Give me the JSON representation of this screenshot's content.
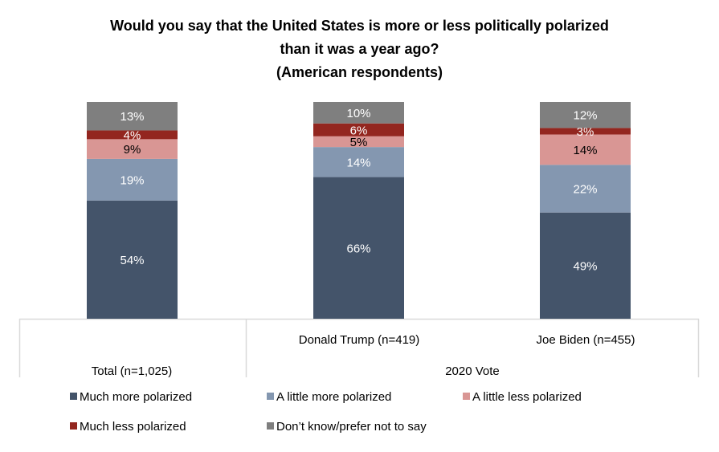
{
  "chart_data": {
    "type": "bar",
    "stacked": true,
    "title_lines": [
      "Would you say that the United States is more or less politically polarized",
      "than it was a year ago?",
      "(American respondents)"
    ],
    "categories": [
      "Total (n=1,025)",
      "Donald Trump (n=419)",
      "Joe Biden (n=455)"
    ],
    "category_group": "2020 Vote",
    "series": [
      {
        "name": "Much more polarized",
        "color": "#44546A",
        "label_color": "#FFFFFF",
        "values": [
          54,
          66,
          49
        ]
      },
      {
        "name": "A little more polarized",
        "color": "#8497B0",
        "label_color": "#FFFFFF",
        "values": [
          19,
          14,
          22
        ]
      },
      {
        "name": "A little less polarized",
        "color": "#D99694",
        "label_color": "#000000",
        "values": [
          9,
          5,
          14
        ]
      },
      {
        "name": "Much less polarized",
        "color": "#93261F",
        "label_color": "#FFFFFF",
        "values": [
          4,
          6,
          3
        ]
      },
      {
        "name": "Don’t know/prefer not to say",
        "color": "#7F7F7F",
        "label_color": "#FFFFFF",
        "values": [
          13,
          10,
          12
        ]
      }
    ],
    "value_suffix": "%",
    "legend_position": "bottom",
    "grid": false
  }
}
